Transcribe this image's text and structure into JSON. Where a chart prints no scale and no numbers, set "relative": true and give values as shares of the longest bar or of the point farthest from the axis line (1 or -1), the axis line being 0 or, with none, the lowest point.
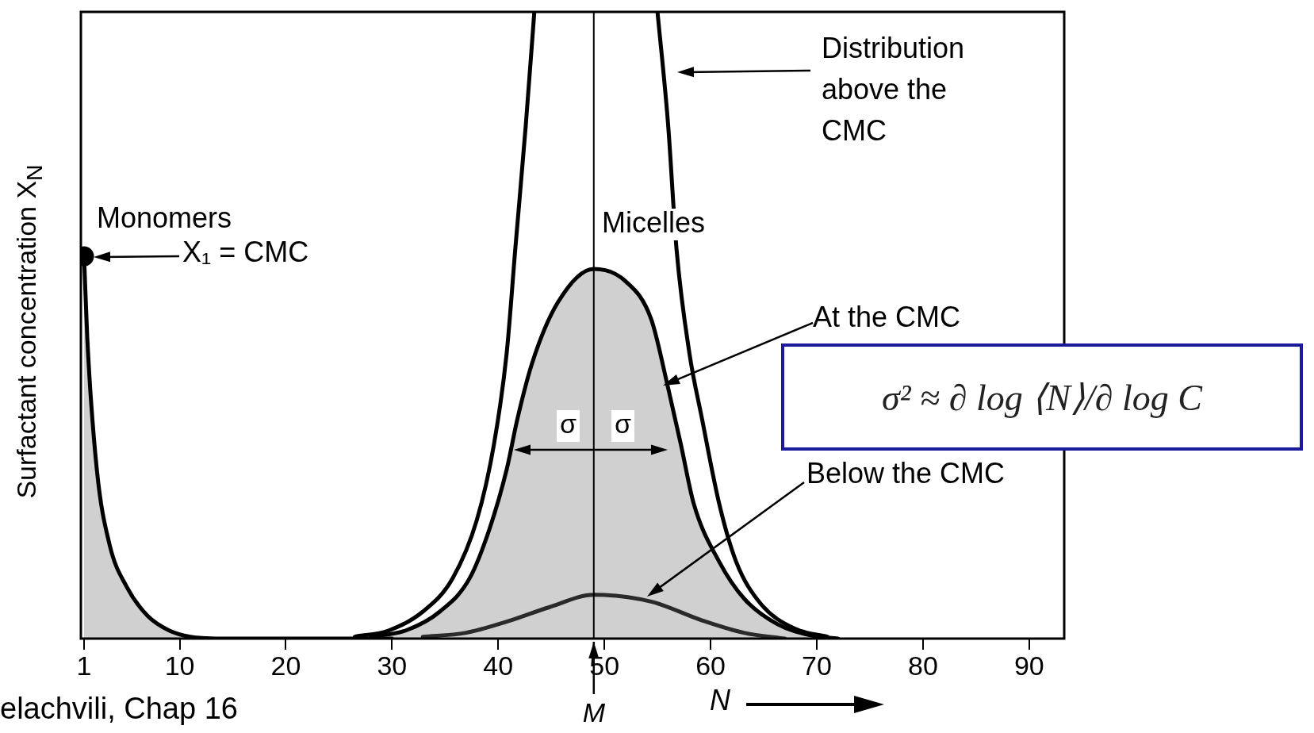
{
  "chart_data": {
    "type": "line",
    "relative": true,
    "xlabel": "N",
    "ylabel": "Surfactant concentration X$_{N}$",
    "xlim": [
      0.7,
      93.3
    ],
    "xticks": [
      1,
      10,
      20,
      30,
      40,
      50,
      60,
      70,
      80,
      90
    ],
    "tick_labels": "x",
    "series": [
      {
        "type": "area",
        "color": "#000000",
        "x": [
          1,
          1.3,
          2.2,
          3.4,
          5,
          7,
          9,
          11,
          14,
          20,
          30
        ],
        "values": [
          0.61,
          0.48,
          0.27,
          0.15,
          0.083,
          0.036,
          0.013,
          0.003,
          0,
          0,
          0
        ]
      },
      {
        "type": "scatter",
        "marker": "circle",
        "color": "#000000",
        "x": [
          1
        ],
        "values": [
          0.61
        ]
      },
      {
        "type": "area",
        "color": "#000000",
        "x": [
          28,
          31.3,
          34.5,
          37.3,
          39.2,
          40.8,
          41.8,
          43.2,
          45.6,
          49,
          52,
          54.4,
          56,
          57.2,
          58.4,
          60.8,
          63.2,
          66.3,
          69.5,
          72
        ],
        "values": [
          0.003,
          0.013,
          0.043,
          0.096,
          0.176,
          0.27,
          0.35,
          0.44,
          0.536,
          0.59,
          0.57,
          0.51,
          0.4,
          0.31,
          0.216,
          0.123,
          0.063,
          0.023,
          0.005,
          0
        ]
      },
      {
        "color": "#000000",
        "x": [
          26.5,
          29.7,
          32.9,
          35.7,
          38,
          39.6,
          40.8,
          41.6,
          42.6,
          43.4,
          49,
          55,
          56,
          56.8,
          58,
          59.2,
          60.8,
          62.4,
          64.7,
          67.9,
          71
        ],
        "values": [
          0.003,
          0.013,
          0.043,
          0.096,
          0.19,
          0.31,
          0.456,
          0.62,
          0.82,
          1,
          null,
          1,
          0.82,
          0.62,
          0.456,
          0.35,
          0.216,
          0.123,
          0.056,
          0.016,
          0.003
        ]
      },
      {
        "color": "#000000",
        "x": [
          32.9,
          36.9,
          40.8,
          44.8,
          49,
          54.4,
          59.2,
          63.2,
          67
        ],
        "values": [
          0.003,
          0.009,
          0.027,
          0.05,
          0.07,
          0.059,
          0.029,
          0.009,
          0
        ]
      }
    ],
    "ref_lines": [
      {
        "axis": "x",
        "value": 49,
        "label": "M"
      }
    ],
    "annotations": [
      "Distribution above the CMC",
      "Micelles",
      "At the CMC",
      "Below the CMC",
      "Monomers",
      "X₁ = CMC",
      "σ",
      "σ",
      "σ² ≈ ∂ log ⟨N⟩/∂ log C",
      "elachvili, Chap 16"
    ]
  }
}
